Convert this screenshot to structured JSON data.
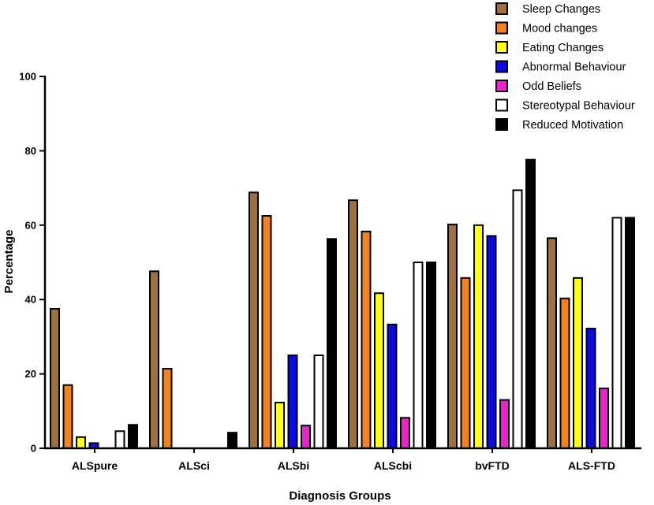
{
  "chart_data": {
    "type": "bar",
    "xlabel": "Diagnosis Groups",
    "ylabel": "Percentage",
    "ylim": [
      0,
      100
    ],
    "yticks": [
      0,
      20,
      40,
      60,
      80,
      100
    ],
    "grid": false,
    "legend_position": "top-right",
    "categories": [
      "ALSpure",
      "ALSci",
      "ALSbi",
      "ALScbi",
      "bvFTD",
      "ALS-FTD"
    ],
    "series": [
      {
        "name": "Sleep Changes",
        "color": "#a0703c",
        "values": [
          37.5,
          47.6,
          68.8,
          66.7,
          60.2,
          56.5
        ]
      },
      {
        "name": "Mood changes",
        "color": "#f58220",
        "values": [
          17.0,
          21.4,
          62.5,
          58.3,
          45.8,
          40.3
        ]
      },
      {
        "name": "Eating Changes",
        "color": "#ffff1a",
        "values": [
          3.0,
          0,
          12.3,
          41.7,
          60.0,
          45.8
        ]
      },
      {
        "name": "Abnormal Behaviour",
        "color": "#0a0ae6",
        "values": [
          1.4,
          0,
          25.0,
          33.3,
          57.1,
          32.2
        ]
      },
      {
        "name": "Odd Beliefs",
        "color": "#ee22cc",
        "values": [
          0,
          0,
          6.1,
          8.2,
          13.0,
          16.1
        ]
      },
      {
        "name": "Stereotypal Behaviour",
        "color": "#ffffff",
        "values": [
          4.6,
          0,
          25.0,
          50.0,
          69.4,
          62.0
        ]
      },
      {
        "name": "Reduced Motivation",
        "color": "#000000",
        "values": [
          6.3,
          4.2,
          56.3,
          50.0,
          77.6,
          62.0
        ]
      }
    ]
  }
}
